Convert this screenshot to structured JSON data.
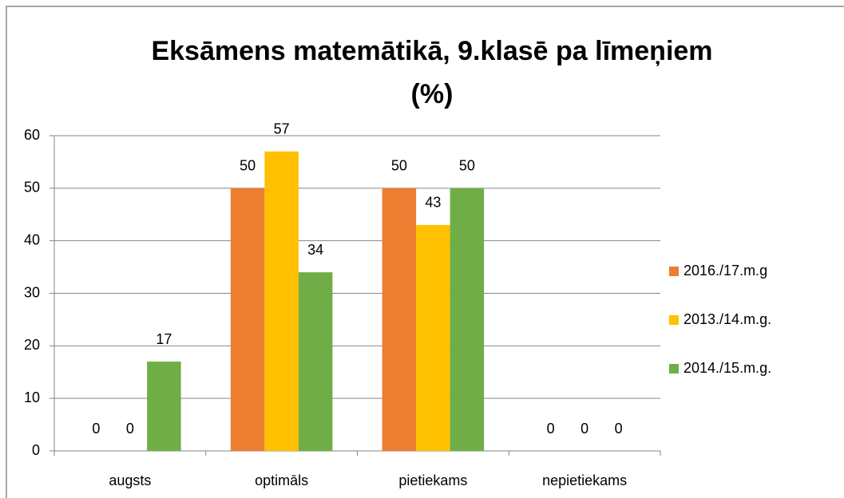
{
  "chart_data": {
    "type": "bar",
    "title": [
      "Eksāmens matemātikā, 9.klasē pa līmeņiem",
      "(%)"
    ],
    "categories": [
      "augsts",
      "optimāls",
      "pietiekams",
      "nepietiekams"
    ],
    "series": [
      {
        "name": "2016./17.m.g",
        "color": "#ed7d31",
        "values": [
          0,
          50,
          50,
          0
        ]
      },
      {
        "name": "2013./14.m.g.",
        "color": "#ffc000",
        "values": [
          0,
          57,
          43,
          0
        ]
      },
      {
        "name": "2014./15.m.g.",
        "color": "#70ad47",
        "values": [
          17,
          34,
          50,
          0
        ]
      }
    ],
    "ylim": [
      0,
      60
    ],
    "yticks": [
      0,
      10,
      20,
      30,
      40,
      50,
      60
    ],
    "grid": true,
    "legend": "right"
  }
}
